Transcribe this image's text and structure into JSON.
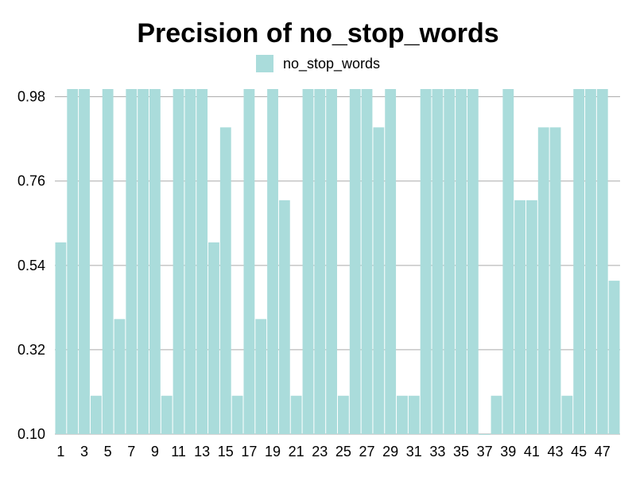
{
  "chart_data": {
    "type": "bar",
    "title": "Precision of no_stop_words",
    "xlabel": "",
    "ylabel": "",
    "ylim": [
      0.1,
      1.0
    ],
    "y_ticks": [
      "0.10",
      "0.32",
      "0.54",
      "0.76",
      "0.98"
    ],
    "grid": true,
    "legend_position": "top-center",
    "categories": [
      1,
      2,
      3,
      4,
      5,
      6,
      7,
      8,
      9,
      10,
      11,
      12,
      13,
      14,
      15,
      16,
      17,
      18,
      19,
      20,
      21,
      22,
      23,
      24,
      25,
      26,
      27,
      28,
      29,
      30,
      31,
      32,
      33,
      34,
      35,
      36,
      37,
      38,
      39,
      40,
      41,
      42,
      43,
      44,
      45,
      46,
      47,
      48
    ],
    "x_tick_labels": [
      "1",
      "3",
      "5",
      "7",
      "9",
      "11",
      "13",
      "15",
      "17",
      "19",
      "21",
      "23",
      "25",
      "27",
      "29",
      "31",
      "33",
      "35",
      "37",
      "39",
      "41",
      "43",
      "45",
      "47"
    ],
    "series": [
      {
        "name": "no_stop_words",
        "color": "#aadcdb",
        "values": [
          0.6,
          1.0,
          1.0,
          0.2,
          1.0,
          0.4,
          1.0,
          1.0,
          1.0,
          0.2,
          1.0,
          1.0,
          1.0,
          0.6,
          0.9,
          0.2,
          1.0,
          0.4,
          1.0,
          0.71,
          0.2,
          1.0,
          1.0,
          1.0,
          0.2,
          1.0,
          1.0,
          0.9,
          1.0,
          0.2,
          0.2,
          1.0,
          1.0,
          1.0,
          1.0,
          1.0,
          0.1,
          0.2,
          1.0,
          0.71,
          0.71,
          0.9,
          0.9,
          0.2,
          1.0,
          1.0,
          1.0,
          0.5
        ]
      }
    ]
  }
}
